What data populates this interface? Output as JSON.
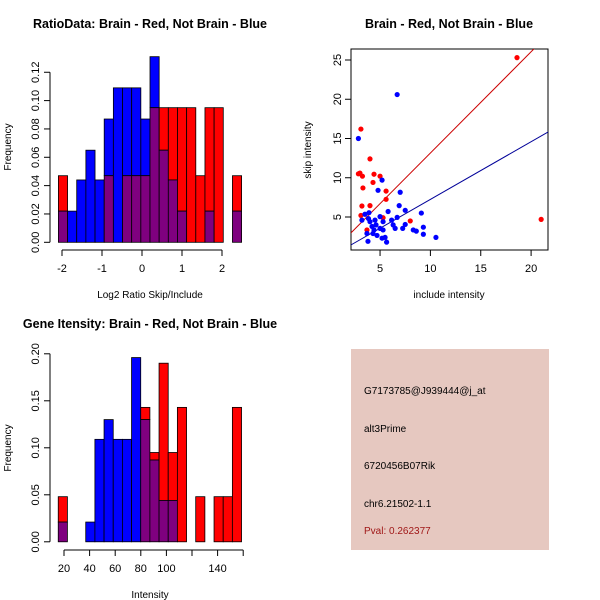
{
  "chart_data": [
    {
      "type": "bar",
      "title": "RatioData: Brain - Red, Not Brain - Blue",
      "xlabel": "Log2 Ratio Skip/Include",
      "ylabel": "Frequency",
      "xlim": [
        -2.1,
        2.5
      ],
      "ylim": [
        0,
        0.13
      ],
      "xticks": [
        -2,
        -1,
        0,
        1,
        2
      ],
      "xtick_labels": [
        "-2",
        "-1",
        "0",
        "1",
        "2"
      ],
      "yticks": [
        0,
        0.02,
        0.04,
        0.06,
        0.08,
        0.1,
        0.12
      ],
      "ytick_labels": [
        "0.00",
        "0.02",
        "0.04",
        "0.06",
        "0.08",
        "0.10",
        "0.12"
      ],
      "bin_start": -2.09,
      "bin_width": 0.229,
      "colors": {
        "brain": "#ff0000",
        "not_brain": "#0000ff",
        "overlap": "#7f007f"
      },
      "series": [
        {
          "name": "Brain",
          "color": "#ff0000",
          "values": [
            0.047,
            0,
            0,
            0,
            0,
            0.047,
            0,
            0.047,
            0.047,
            0.047,
            0.095,
            0.095,
            0.095,
            0.095,
            0.095,
            0.047,
            0.095,
            0.095,
            0,
            0.047
          ]
        },
        {
          "name": "Not Brain",
          "color": "#0000ff",
          "values": [
            0.022,
            0.022,
            0.044,
            0.065,
            0.044,
            0.087,
            0.109,
            0.109,
            0.109,
            0.087,
            0.131,
            0.065,
            0.044,
            0.022,
            0,
            0,
            0.022,
            0,
            0,
            0.022
          ]
        }
      ]
    },
    {
      "type": "scatter",
      "title": "Brain - Red, Not Brain - Blue",
      "xlabel": "include intensity",
      "ylabel": "skip intensity",
      "xlim": [
        2.1,
        21.7
      ],
      "ylim": [
        0.8,
        26.4
      ],
      "xticks": [
        5,
        10,
        15,
        20
      ],
      "xtick_labels": [
        "5",
        "10",
        "15",
        "20"
      ],
      "yticks": [
        5,
        10,
        15,
        20,
        25
      ],
      "ytick_labels": [
        "5",
        "10",
        "15",
        "20",
        "25"
      ],
      "series": [
        {
          "name": "Brain",
          "color": "#ff0000",
          "points": [
            [
              3.1,
              16.2
            ],
            [
              2.85,
              10.5
            ],
            [
              3.0,
              10.6
            ],
            [
              3.25,
              10.2
            ],
            [
              4.0,
              12.4
            ],
            [
              4.4,
              10.45
            ],
            [
              4.3,
              9.4
            ],
            [
              5.0,
              10.2
            ],
            [
              3.3,
              8.7
            ],
            [
              5.6,
              8.3
            ],
            [
              3.2,
              6.4
            ],
            [
              4.0,
              6.45
            ],
            [
              5.6,
              7.25
            ],
            [
              3.1,
              5.2
            ],
            [
              5.3,
              4.9
            ],
            [
              3.7,
              3.35
            ],
            [
              8.0,
              4.5
            ],
            [
              18.6,
              25.3
            ],
            [
              21.0,
              4.7
            ]
          ],
          "fit": {
            "slope": 1.29,
            "intercept": 0.25,
            "color": "#cc0000"
          }
        },
        {
          "name": "Not Brain",
          "color": "#0000ff",
          "points": [
            [
              2.85,
              15.0
            ],
            [
              6.7,
              20.6
            ],
            [
              5.2,
              9.7
            ],
            [
              4.8,
              8.4
            ],
            [
              7.0,
              8.15
            ],
            [
              6.9,
              6.45
            ],
            [
              5.8,
              5.7
            ],
            [
              7.5,
              5.85
            ],
            [
              9.1,
              5.5
            ],
            [
              6.7,
              4.95
            ],
            [
              3.2,
              4.6
            ],
            [
              3.5,
              5.35
            ],
            [
              3.9,
              5.55
            ],
            [
              3.85,
              4.8
            ],
            [
              4.0,
              4.4
            ],
            [
              4.5,
              4.6
            ],
            [
              5.0,
              5.05
            ],
            [
              5.3,
              4.4
            ],
            [
              4.6,
              4.0
            ],
            [
              4.2,
              3.8
            ],
            [
              4.4,
              3.35
            ],
            [
              5.0,
              3.55
            ],
            [
              5.3,
              3.35
            ],
            [
              4.7,
              2.65
            ],
            [
              3.8,
              1.9
            ],
            [
              5.2,
              2.3
            ],
            [
              5.5,
              2.4
            ],
            [
              5.65,
              1.8
            ],
            [
              6.15,
              4.6
            ],
            [
              6.3,
              4.0
            ],
            [
              6.5,
              3.55
            ],
            [
              7.25,
              3.55
            ],
            [
              7.5,
              4.05
            ],
            [
              8.3,
              3.35
            ],
            [
              8.6,
              3.2
            ],
            [
              9.3,
              3.7
            ],
            [
              9.3,
              2.8
            ],
            [
              10.55,
              2.4
            ],
            [
              3.7,
              2.9
            ],
            [
              4.3,
              2.9
            ]
          ],
          "fit": {
            "slope": 0.735,
            "intercept": -0.11,
            "color": "#000099"
          }
        }
      ]
    },
    {
      "type": "bar",
      "title": "Gene Itensity: Brain - Red, Not Brain - Blue",
      "xlabel": "Intensity",
      "ylabel": "Frequency",
      "xlim": [
        15.5,
        160
      ],
      "ylim": [
        0,
        0.2
      ],
      "xticks": [
        20,
        40,
        60,
        80,
        100,
        120,
        140,
        160
      ],
      "xtick_labels": [
        "20",
        "40",
        "60",
        "80",
        "100",
        "",
        "140",
        ""
      ],
      "yticks": [
        0,
        0.05,
        0.1,
        0.15,
        0.2
      ],
      "ytick_labels": [
        "0.00",
        "0.05",
        "0.10",
        "0.15",
        "0.20"
      ],
      "bin_start": 15.5,
      "bin_width": 7.16,
      "series": [
        {
          "name": "Brain",
          "color": "#ff0000",
          "values": [
            0.048,
            0,
            0,
            0,
            0,
            0,
            0,
            0,
            0,
            0.143,
            0.095,
            0.19,
            0.095,
            0.143,
            0,
            0.048,
            0,
            0.048,
            0.048,
            0.143
          ]
        },
        {
          "name": "Not Brain",
          "color": "#0000ff",
          "values": [
            0.021,
            0,
            0,
            0.021,
            0.109,
            0.13,
            0.109,
            0.109,
            0.196,
            0.13,
            0.087,
            0.044,
            0.044,
            0,
            0,
            0,
            0,
            0,
            0,
            0
          ]
        }
      ]
    }
  ],
  "info_panel": {
    "probe_id": "G7173785@J939444@j_at",
    "event_type": "alt3Prime",
    "gene": "6720456B07Rik",
    "location": "chr6.21502-1.1",
    "pval_label": "Pval: 0.262377",
    "pval_color": "#a01818",
    "background": "#e6c8c0"
  }
}
